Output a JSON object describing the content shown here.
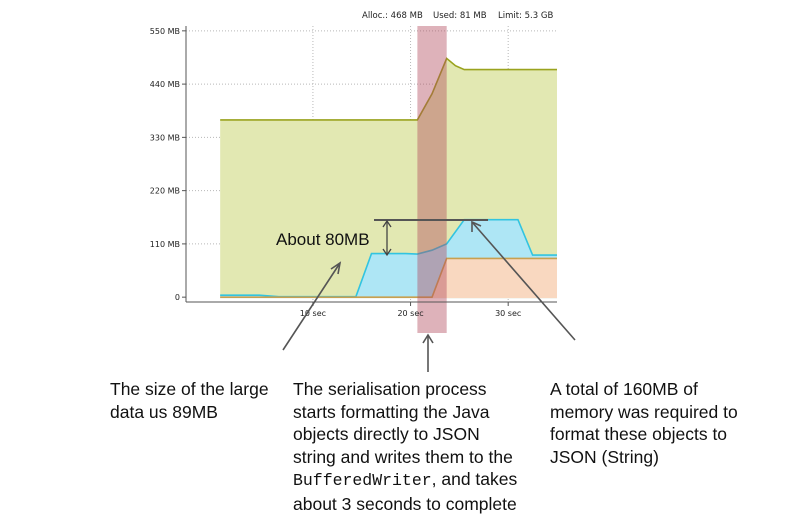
{
  "header": {
    "alloc": "Alloc.: 468 MB",
    "used": "Used: 81 MB",
    "limit": "Limit: 5.3 GB"
  },
  "chart_data": {
    "type": "area",
    "x_unit": "sec",
    "xlim": [
      -3,
      35
    ],
    "ylim": [
      -10,
      560
    ],
    "x_ticks": [
      {
        "value": 10,
        "label": "10 sec"
      },
      {
        "value": 20,
        "label": "20 sec"
      },
      {
        "value": 30,
        "label": "30 sec"
      }
    ],
    "y_ticks": [
      {
        "value": 0,
        "label": "0"
      },
      {
        "value": 110,
        "label": "110 MB"
      },
      {
        "value": 220,
        "label": "220 MB"
      },
      {
        "value": 330,
        "label": "330 MB"
      },
      {
        "value": 440,
        "label": "440 MB"
      },
      {
        "value": 550,
        "label": "550 MB"
      }
    ],
    "grid": true,
    "series": [
      {
        "color": "#9aa31e",
        "fill": "#e2e8b2",
        "x": [
          0.5,
          20.7,
          22.2,
          23.7,
          24.6,
          25.5,
          35
        ],
        "values": [
          366,
          366,
          420,
          493,
          478,
          470,
          470
        ]
      },
      {
        "color": "#32c4e0",
        "fill": "#aee6f5",
        "x": [
          0.5,
          4.5,
          6.5,
          11,
          12.8,
          14.4,
          16,
          19.5,
          20.7,
          22.2,
          23.7,
          25.5,
          31,
          32.5,
          35
        ],
        "values": [
          4,
          4,
          1,
          1,
          1,
          1,
          90,
          90,
          89,
          97,
          110,
          160,
          160,
          87,
          87
        ]
      },
      {
        "color": "#c8a050",
        "fill": "#f9d8c0",
        "x": [
          0.5,
          19.5,
          20.7,
          22.2,
          23.7,
          35
        ],
        "values": [
          0,
          0,
          0,
          0,
          80,
          80
        ]
      }
    ],
    "highlight": {
      "x_start": 20.7,
      "x_end": 23.7
    },
    "annotations": [
      {
        "text": "About 80MB"
      }
    ]
  },
  "captions": {
    "left": [
      "The size of the large",
      "data us 89MB"
    ],
    "middle": {
      "lines": [
        "The serialisation process",
        "starts formatting the Java",
        "objects directly to JSON",
        "string and writes them to the"
      ],
      "code": "BufferedWriter",
      "after_code": ", and takes",
      "last": "about 3 seconds to complete"
    },
    "right": [
      "A total of 160MB of",
      "memory was required to",
      "format these objects to",
      "JSON (String)"
    ]
  }
}
